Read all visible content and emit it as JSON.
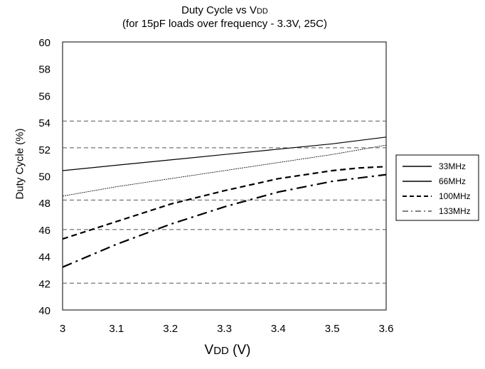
{
  "chart_data": {
    "type": "line",
    "title_main": "Duty Cycle vs V",
    "title_main_sub": "DD",
    "subtitle": "(for 15pF loads over frequency - 3.3V, 25C)",
    "ylabel": "Duty Cycle (%)",
    "xlabel_main": "V",
    "xlabel_sub": "DD",
    "xlabel_unit": " (V)",
    "xlim": [
      3.0,
      3.6
    ],
    "ylim": [
      40,
      60
    ],
    "xticks": [
      "3",
      "3.1",
      "3.2",
      "3.3",
      "3.4",
      "3.5",
      "3.6"
    ],
    "yticks": [
      "40",
      "42",
      "44",
      "46",
      "48",
      "50",
      "52",
      "54",
      "56",
      "58",
      "60"
    ],
    "reference_lines": [
      42,
      46,
      48.2,
      52.1,
      54.1
    ],
    "legend_position": "right",
    "series": [
      {
        "name": "33MHz",
        "style": "solid-thin",
        "x": [
          3.0,
          3.1,
          3.2,
          3.3,
          3.4,
          3.5,
          3.6
        ],
        "y": [
          50.4,
          50.8,
          51.2,
          51.6,
          52.0,
          52.4,
          52.9
        ]
      },
      {
        "name": "66MHz",
        "style": "solid-thin-light",
        "x": [
          3.0,
          3.1,
          3.2,
          3.3,
          3.4,
          3.5,
          3.6
        ],
        "y": [
          48.5,
          49.2,
          49.8,
          50.4,
          51.0,
          51.6,
          52.3
        ]
      },
      {
        "name": "100MHz",
        "style": "dashed-bold",
        "x": [
          3.0,
          3.1,
          3.2,
          3.3,
          3.4,
          3.5,
          3.55,
          3.6
        ],
        "y": [
          45.3,
          46.6,
          47.9,
          48.9,
          49.8,
          50.4,
          50.6,
          50.7
        ]
      },
      {
        "name": "133MHz",
        "style": "dashdot-bold",
        "x": [
          3.0,
          3.1,
          3.2,
          3.3,
          3.4,
          3.5,
          3.6
        ],
        "y": [
          43.2,
          44.9,
          46.4,
          47.7,
          48.8,
          49.6,
          50.1
        ]
      }
    ]
  }
}
